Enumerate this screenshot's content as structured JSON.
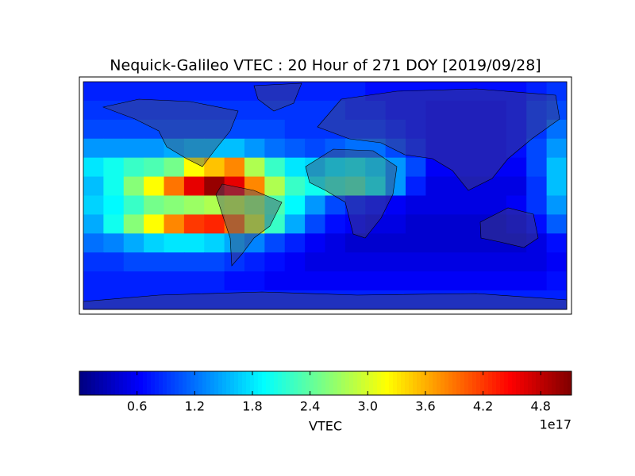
{
  "chart_data": {
    "type": "heatmap",
    "title": "Nequick-Galileo VTEC : 20 Hour of 271 DOY [2019/09/28]",
    "colorbar_label": "VTEC",
    "colorbar_exponent": "1e17",
    "colormap": "jet",
    "clim": [
      0,
      5.12
    ],
    "cticks": [
      0.6,
      1.2,
      1.8,
      2.4,
      {
        "value": 3,
        "label": "3.0"
      },
      3.6,
      4.2,
      4.8
    ],
    "z": [
      [
        0.8,
        0.8,
        0.8,
        0.8,
        0.8,
        0.8,
        0.8,
        0.8,
        0.8,
        0.8,
        0.8,
        0.8,
        0.8,
        0.8,
        0.7,
        0.7,
        0.7,
        0.7,
        0.7,
        0.7,
        0.7,
        0.7,
        0.8,
        0.9
      ],
      [
        0.9,
        0.9,
        0.9,
        0.9,
        0.9,
        0.9,
        0.9,
        0.9,
        0.9,
        0.9,
        0.9,
        0.9,
        0.9,
        0.8,
        0.8,
        0.7,
        0.7,
        0.6,
        0.6,
        0.6,
        0.6,
        0.7,
        0.9,
        1.0
      ],
      [
        1.0,
        1.0,
        1.0,
        1.0,
        1.0,
        1.0,
        1.0,
        1.0,
        1.0,
        1.0,
        0.9,
        0.9,
        0.9,
        0.9,
        0.9,
        0.8,
        0.7,
        0.6,
        0.6,
        0.6,
        0.6,
        0.7,
        0.9,
        1.2
      ],
      [
        1.4,
        1.4,
        1.4,
        1.4,
        1.5,
        1.6,
        1.6,
        1.6,
        1.4,
        1.2,
        1.1,
        1.0,
        1.1,
        1.2,
        1.2,
        1.0,
        0.8,
        0.6,
        0.6,
        0.6,
        0.6,
        0.7,
        1.0,
        1.4
      ],
      [
        1.8,
        2.0,
        2.2,
        2.3,
        2.5,
        3.2,
        3.5,
        3.8,
        2.8,
        2.2,
        1.8,
        1.7,
        1.9,
        2.0,
        1.8,
        1.4,
        1.0,
        0.6,
        0.6,
        0.6,
        0.6,
        0.6,
        1.0,
        1.6
      ],
      [
        1.6,
        2.0,
        2.6,
        3.2,
        3.9,
        4.6,
        5.0,
        4.6,
        3.8,
        2.8,
        2.2,
        2.0,
        2.2,
        2.3,
        2.0,
        1.4,
        0.8,
        0.5,
        0.5,
        0.5,
        0.5,
        0.5,
        0.9,
        1.6
      ],
      [
        1.7,
        1.9,
        2.2,
        2.5,
        2.6,
        2.7,
        2.8,
        2.9,
        2.7,
        2.3,
        1.9,
        1.4,
        1.0,
        0.8,
        0.7,
        0.6,
        0.5,
        0.5,
        0.5,
        0.5,
        0.5,
        0.6,
        0.9,
        1.4
      ],
      [
        1.5,
        2.0,
        2.6,
        3.2,
        3.8,
        4.2,
        4.3,
        3.9,
        3.0,
        2.2,
        1.5,
        1.0,
        0.7,
        0.6,
        0.5,
        0.5,
        0.4,
        0.4,
        0.4,
        0.4,
        0.4,
        0.5,
        0.7,
        1.1
      ],
      [
        1.2,
        1.3,
        1.5,
        1.7,
        1.8,
        1.8,
        1.7,
        1.5,
        1.3,
        1.0,
        0.8,
        0.6,
        0.5,
        0.4,
        0.4,
        0.4,
        0.4,
        0.4,
        0.4,
        0.4,
        0.4,
        0.4,
        0.5,
        0.7
      ],
      [
        0.9,
        0.9,
        1.0,
        1.0,
        1.0,
        1.0,
        1.0,
        0.9,
        0.8,
        0.7,
        0.6,
        0.5,
        0.5,
        0.5,
        0.5,
        0.5,
        0.5,
        0.5,
        0.5,
        0.5,
        0.5,
        0.5,
        0.5,
        0.6
      ],
      [
        0.8,
        0.8,
        0.8,
        0.8,
        0.8,
        0.8,
        0.8,
        0.7,
        0.7,
        0.6,
        0.6,
        0.6,
        0.6,
        0.6,
        0.6,
        0.6,
        0.6,
        0.6,
        0.6,
        0.6,
        0.6,
        0.6,
        0.6,
        0.7
      ],
      [
        0.8,
        0.8,
        0.8,
        0.8,
        0.8,
        0.8,
        0.8,
        0.8,
        0.8,
        0.8,
        0.8,
        0.8,
        0.8,
        0.8,
        0.8,
        0.8,
        0.8,
        0.8,
        0.8,
        0.8,
        0.8,
        0.8,
        0.8,
        0.8
      ]
    ]
  }
}
